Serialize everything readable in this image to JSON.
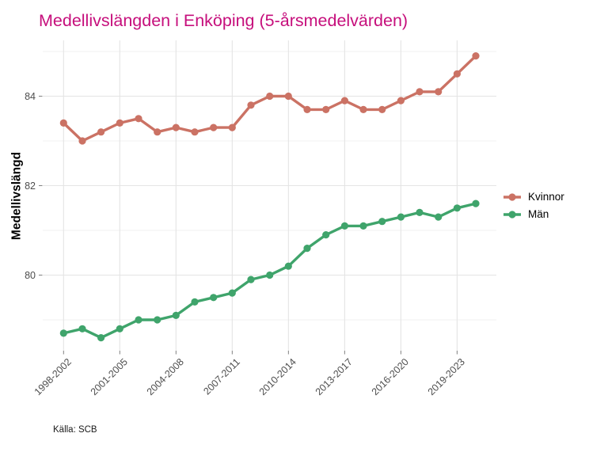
{
  "title": "Medellivslängden i Enköping (5-årsmedelvärden)",
  "caption": "Källa: SCB",
  "colors": {
    "title": "#c60f7c",
    "kvinnor": "#cb7264",
    "man": "#3fa46b",
    "axis_text": "#4d4d4d",
    "tick_mark": "#808080",
    "grid_major": "#e4e4e4",
    "grid_minor": "#f0f0f0",
    "background": "#ffffff"
  },
  "y_axis": {
    "label": "Medellivslängd",
    "ticks": [
      "84",
      "82",
      "80"
    ],
    "tick_values": [
      84,
      82,
      80
    ]
  },
  "x_axis": {
    "tick_labels": [
      "1998-2002",
      "2001-2005",
      "2004-2008",
      "2007-2011",
      "2010-2014",
      "2013-2017",
      "2016-2020",
      "2019-2023"
    ],
    "tick_indices": [
      0,
      3,
      6,
      9,
      12,
      15,
      18,
      21
    ]
  },
  "legend": {
    "position": "right",
    "items": [
      {
        "label": "Kvinnor",
        "color": "#cb7264"
      },
      {
        "label": "Män",
        "color": "#3fa46b"
      }
    ]
  },
  "chart_data": {
    "type": "line",
    "title": "Medellivslängden i Enköping (5-årsmedelvärden)",
    "xlabel": "",
    "ylabel": "Medellivslängd",
    "ylim": [
      78.3,
      85.3
    ],
    "grid": "on",
    "legend_position": "right",
    "categories": [
      "1998-2002",
      "1999-2003",
      "2000-2004",
      "2001-2005",
      "2002-2006",
      "2003-2007",
      "2004-2008",
      "2005-2009",
      "2006-2010",
      "2007-2011",
      "2008-2012",
      "2009-2013",
      "2010-2014",
      "2011-2015",
      "2012-2016",
      "2013-2017",
      "2014-2018",
      "2015-2019",
      "2016-2020",
      "2017-2021",
      "2018-2022",
      "2019-2023",
      "2020-2024"
    ],
    "x_tick_labels": [
      "1998-2002",
      "2001-2005",
      "2004-2008",
      "2007-2011",
      "2010-2014",
      "2013-2017",
      "2016-2020",
      "2019-2023"
    ],
    "y_gridlines_major": [
      80,
      82,
      84
    ],
    "y_gridlines_minor": [
      79,
      81,
      83,
      85
    ],
    "series": [
      {
        "name": "Kvinnor",
        "color": "#cb7264",
        "values": [
          83.4,
          83.0,
          83.2,
          83.4,
          83.5,
          83.2,
          83.3,
          83.2,
          83.3,
          83.3,
          83.8,
          84.0,
          84.0,
          83.7,
          83.7,
          83.9,
          83.7,
          83.7,
          83.9,
          84.1,
          84.1,
          84.5,
          84.9
        ]
      },
      {
        "name": "Män",
        "color": "#3fa46b",
        "values": [
          78.7,
          78.8,
          78.6,
          78.8,
          79.0,
          79.0,
          79.1,
          79.4,
          79.5,
          79.6,
          79.9,
          80.0,
          80.2,
          80.6,
          80.9,
          81.1,
          81.1,
          81.2,
          81.3,
          81.4,
          81.3,
          81.5,
          81.6
        ]
      }
    ],
    "source": "Källa: SCB"
  }
}
